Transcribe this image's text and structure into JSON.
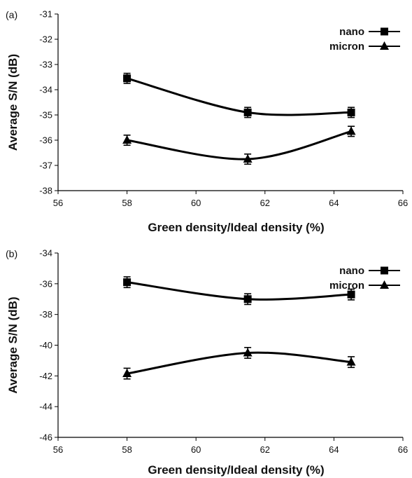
{
  "chart_data": [
    {
      "panel_label": "(a)",
      "type": "line",
      "xlabel": "Green density/Ideal density (%)",
      "ylabel": "Average S/N (dB)",
      "xlim": [
        56,
        66
      ],
      "ylim": [
        -38,
        -31
      ],
      "xticks": [
        56,
        58,
        60,
        62,
        64,
        66
      ],
      "yticks": [
        -38,
        -37,
        -36,
        -35,
        -34,
        -33,
        -32,
        -31
      ],
      "x_tick_labels": [
        "56",
        "58",
        "60",
        "62",
        "64",
        "66"
      ],
      "y_tick_labels": [
        "-38",
        "-37",
        "-36",
        "-35",
        "-34",
        "-33",
        "-32",
        "-31"
      ],
      "legend_position": "top-right",
      "grid": false,
      "x": [
        58,
        61.5,
        64.5
      ],
      "series": [
        {
          "name": "nano",
          "marker": "square",
          "values": [
            -33.55,
            -34.9,
            -34.9
          ],
          "error": [
            0.2,
            0.2,
            0.2
          ]
        },
        {
          "name": "micron",
          "marker": "triangle",
          "values": [
            -36.0,
            -36.75,
            -35.65
          ],
          "error": [
            0.2,
            0.2,
            0.2
          ]
        }
      ]
    },
    {
      "panel_label": "(b)",
      "type": "line",
      "xlabel": "Green density/Ideal density (%)",
      "ylabel": "Average S/N (dB)",
      "xlim": [
        56,
        66
      ],
      "ylim": [
        -46,
        -34
      ],
      "xticks": [
        56,
        58,
        60,
        62,
        64,
        66
      ],
      "yticks": [
        -46,
        -44,
        -42,
        -40,
        -38,
        -36,
        -34
      ],
      "x_tick_labels": [
        "56",
        "58",
        "60",
        "62",
        "64",
        "66"
      ],
      "y_tick_labels": [
        "-46",
        "-44",
        "-42",
        "-40",
        "-38",
        "-36",
        "-34"
      ],
      "legend_position": "top-right",
      "grid": false,
      "x": [
        58,
        61.5,
        64.5
      ],
      "series": [
        {
          "name": "nano",
          "marker": "square",
          "values": [
            -35.9,
            -37.0,
            -36.7
          ],
          "error": [
            0.35,
            0.35,
            0.35
          ]
        },
        {
          "name": "micron",
          "marker": "triangle",
          "values": [
            -41.85,
            -40.5,
            -41.1
          ],
          "error": [
            0.35,
            0.35,
            0.35
          ]
        }
      ]
    }
  ]
}
